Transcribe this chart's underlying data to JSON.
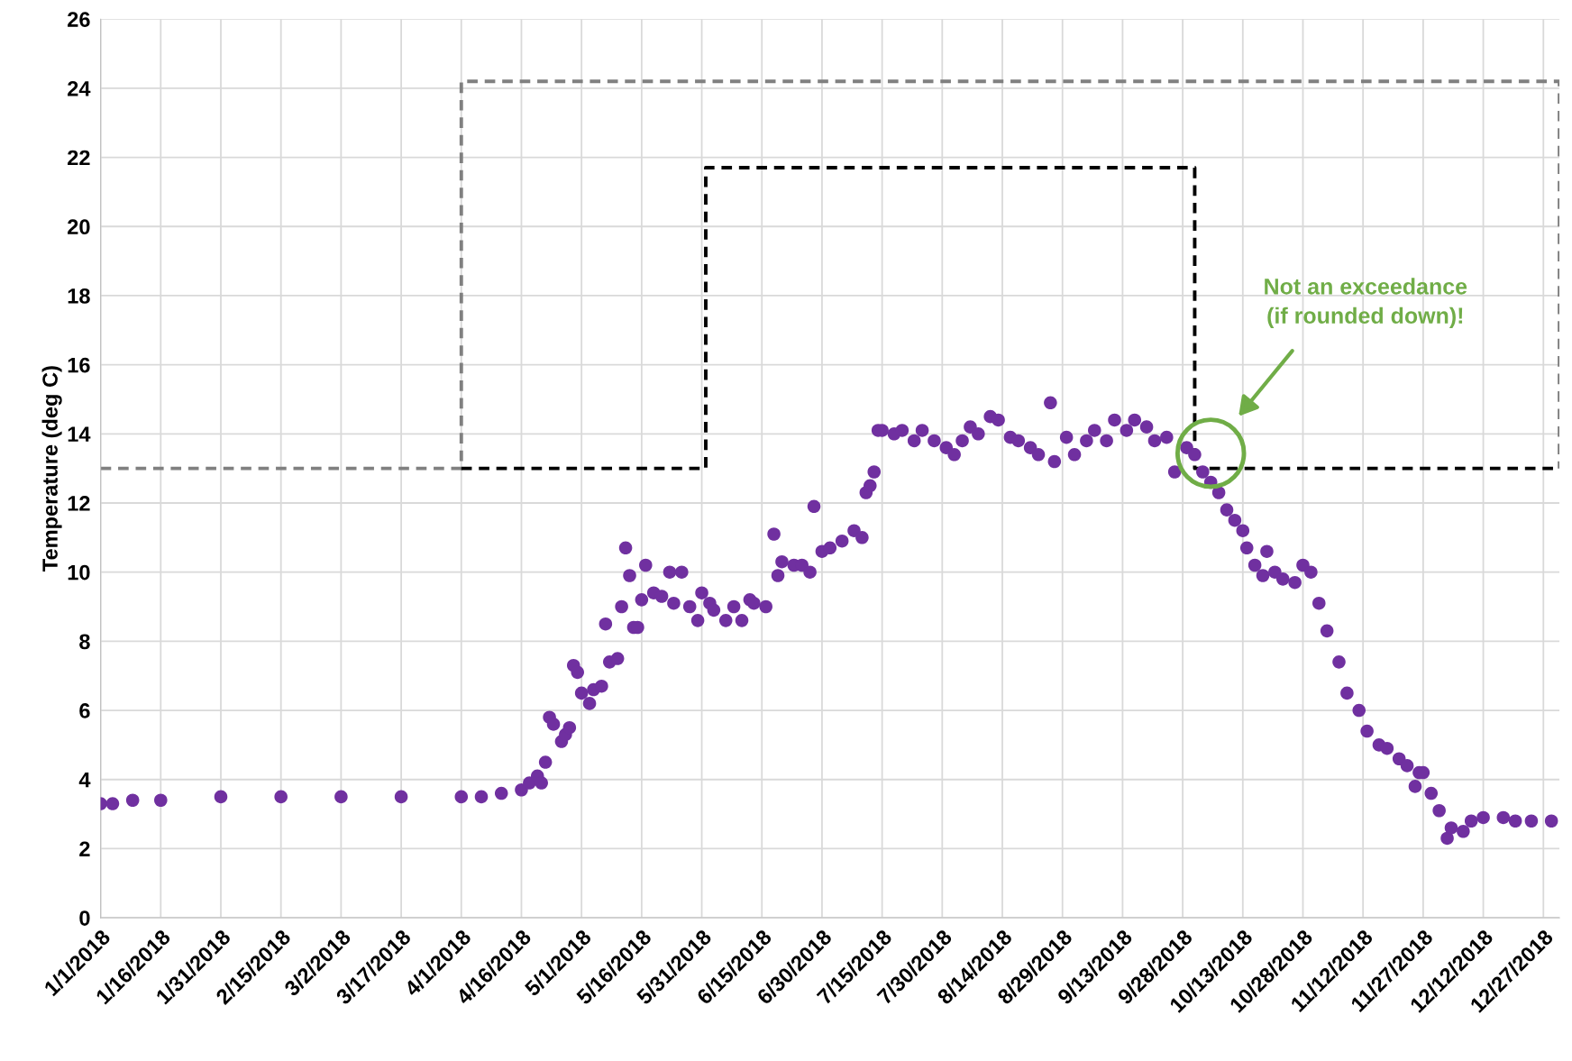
{
  "chart_data": {
    "type": "scatter",
    "ylabel": "Temperature (deg C)",
    "xlim": [
      "2018-01-01",
      "2018-12-31"
    ],
    "xticks": [
      {
        "value": "2018-01-01",
        "label": "1/1/2018"
      },
      {
        "value": "2018-01-16",
        "label": "1/16/2018"
      },
      {
        "value": "2018-01-31",
        "label": "1/31/2018"
      },
      {
        "value": "2018-02-15",
        "label": "2/15/2018"
      },
      {
        "value": "2018-03-02",
        "label": "3/2/2018"
      },
      {
        "value": "2018-03-17",
        "label": "3/17/2018"
      },
      {
        "value": "2018-04-01",
        "label": "4/1/2018"
      },
      {
        "value": "2018-04-16",
        "label": "4/16/2018"
      },
      {
        "value": "2018-05-01",
        "label": "5/1/2018"
      },
      {
        "value": "2018-05-16",
        "label": "5/16/2018"
      },
      {
        "value": "2018-05-31",
        "label": "5/31/2018"
      },
      {
        "value": "2018-06-15",
        "label": "6/15/2018"
      },
      {
        "value": "2018-06-30",
        "label": "6/30/2018"
      },
      {
        "value": "2018-07-15",
        "label": "7/15/2018"
      },
      {
        "value": "2018-07-30",
        "label": "7/30/2018"
      },
      {
        "value": "2018-08-14",
        "label": "8/14/2018"
      },
      {
        "value": "2018-08-29",
        "label": "8/29/2018"
      },
      {
        "value": "2018-09-13",
        "label": "9/13/2018"
      },
      {
        "value": "2018-09-28",
        "label": "9/28/2018"
      },
      {
        "value": "2018-10-13",
        "label": "10/13/2018"
      },
      {
        "value": "2018-10-28",
        "label": "10/28/2018"
      },
      {
        "value": "2018-11-12",
        "label": "11/12/2018"
      },
      {
        "value": "2018-11-27",
        "label": "11/27/2018"
      },
      {
        "value": "2018-12-12",
        "label": "12/12/2018"
      },
      {
        "value": "2018-12-27",
        "label": "12/27/2018"
      }
    ],
    "ylim": [
      0,
      26
    ],
    "yticks": [
      0,
      2,
      4,
      6,
      8,
      10,
      12,
      14,
      16,
      18,
      20,
      22,
      24,
      26
    ],
    "grid": true,
    "series": [
      {
        "type": "line",
        "color": "#808080",
        "line_style": "dashed",
        "marker": "none",
        "x": [
          "2018-01-01",
          "2018-04-01",
          "2018-04-01",
          "2018-12-31",
          "2018-12-31"
        ],
        "values": [
          13,
          13,
          24.2,
          24.2,
          13
        ]
      },
      {
        "type": "line",
        "color": "#000000",
        "line_style": "dashed",
        "marker": "none",
        "x": [
          "2018-04-01",
          "2018-06-01",
          "2018-06-01",
          "2018-10-01",
          "2018-10-01",
          "2018-12-31"
        ],
        "values": [
          13,
          13,
          21.7,
          21.7,
          13,
          13
        ]
      },
      {
        "color": "#7030a0",
        "marker": "circle",
        "x": [
          "2018-01-01",
          "2018-01-04",
          "2018-01-09",
          "2018-01-16",
          "2018-01-31",
          "2018-02-15",
          "2018-03-02",
          "2018-03-17",
          "2018-04-01",
          "2018-04-06",
          "2018-04-11",
          "2018-04-16",
          "2018-04-18",
          "2018-04-20",
          "2018-04-21",
          "2018-04-22",
          "2018-04-23",
          "2018-04-24",
          "2018-04-26",
          "2018-04-27",
          "2018-04-28",
          "2018-04-29",
          "2018-04-30",
          "2018-05-01",
          "2018-05-03",
          "2018-05-04",
          "2018-05-06",
          "2018-05-07",
          "2018-05-08",
          "2018-05-10",
          "2018-05-11",
          "2018-05-12",
          "2018-05-13",
          "2018-05-14",
          "2018-05-15",
          "2018-05-16",
          "2018-05-17",
          "2018-05-19",
          "2018-05-21",
          "2018-05-23",
          "2018-05-24",
          "2018-05-26",
          "2018-05-28",
          "2018-05-30",
          "2018-05-31",
          "2018-06-02",
          "2018-06-03",
          "2018-06-06",
          "2018-06-08",
          "2018-06-10",
          "2018-06-12",
          "2018-06-13",
          "2018-06-16",
          "2018-06-18",
          "2018-06-19",
          "2018-06-20",
          "2018-06-23",
          "2018-06-25",
          "2018-06-27",
          "2018-06-28",
          "2018-06-30",
          "2018-07-02",
          "2018-07-05",
          "2018-07-08",
          "2018-07-10",
          "2018-07-11",
          "2018-07-12",
          "2018-07-13",
          "2018-07-14",
          "2018-07-15",
          "2018-07-18",
          "2018-07-20",
          "2018-07-23",
          "2018-07-25",
          "2018-07-28",
          "2018-07-31",
          "2018-08-02",
          "2018-08-04",
          "2018-08-06",
          "2018-08-08",
          "2018-08-11",
          "2018-08-13",
          "2018-08-16",
          "2018-08-18",
          "2018-08-21",
          "2018-08-23",
          "2018-08-26",
          "2018-08-27",
          "2018-08-30",
          "2018-09-01",
          "2018-09-04",
          "2018-09-06",
          "2018-09-09",
          "2018-09-11",
          "2018-09-14",
          "2018-09-16",
          "2018-09-19",
          "2018-09-21",
          "2018-09-24",
          "2018-09-26",
          "2018-09-29",
          "2018-10-01",
          "2018-10-03",
          "2018-10-05",
          "2018-10-07",
          "2018-10-09",
          "2018-10-11",
          "2018-10-13",
          "2018-10-14",
          "2018-10-16",
          "2018-10-18",
          "2018-10-19",
          "2018-10-21",
          "2018-10-23",
          "2018-10-26",
          "2018-10-28",
          "2018-10-30",
          "2018-11-01",
          "2018-11-03",
          "2018-11-06",
          "2018-11-08",
          "2018-11-11",
          "2018-11-13",
          "2018-11-16",
          "2018-11-18",
          "2018-11-21",
          "2018-11-23",
          "2018-11-25",
          "2018-11-26",
          "2018-11-27",
          "2018-11-29",
          "2018-12-01",
          "2018-12-03",
          "2018-12-04",
          "2018-12-07",
          "2018-12-09",
          "2018-12-12",
          "2018-12-17",
          "2018-12-20",
          "2018-12-24",
          "2018-12-29"
        ],
        "values": [
          3.3,
          3.3,
          3.4,
          3.4,
          3.5,
          3.5,
          3.5,
          3.5,
          3.5,
          3.5,
          3.6,
          3.7,
          3.9,
          4.1,
          3.9,
          4.5,
          5.8,
          5.6,
          5.1,
          5.3,
          5.5,
          7.3,
          7.1,
          6.5,
          6.2,
          6.6,
          6.7,
          8.5,
          7.4,
          7.5,
          9.0,
          10.7,
          9.9,
          8.4,
          8.4,
          9.2,
          10.2,
          9.4,
          9.3,
          10.0,
          9.1,
          10.0,
          9.0,
          8.6,
          9.4,
          9.1,
          8.9,
          8.6,
          9.0,
          8.6,
          9.2,
          9.1,
          9.0,
          11.1,
          9.9,
          10.3,
          10.2,
          10.2,
          10.0,
          11.9,
          10.6,
          10.7,
          10.9,
          11.2,
          11.0,
          12.3,
          12.5,
          12.9,
          14.1,
          14.1,
          14.0,
          14.1,
          13.8,
          14.1,
          13.8,
          13.6,
          13.4,
          13.8,
          14.2,
          14.0,
          14.5,
          14.4,
          13.9,
          13.8,
          13.6,
          13.4,
          14.9,
          13.2,
          13.9,
          13.4,
          13.8,
          14.1,
          13.8,
          14.4,
          14.1,
          14.4,
          14.2,
          13.8,
          13.9,
          12.9,
          13.6,
          13.4,
          12.9,
          12.6,
          12.3,
          11.8,
          11.5,
          11.2,
          10.7,
          10.2,
          9.9,
          10.6,
          10.0,
          9.8,
          9.7,
          10.2,
          10.0,
          9.1,
          8.3,
          7.4,
          6.5,
          6.0,
          5.4,
          5.0,
          4.9,
          4.6,
          4.4,
          3.8,
          4.2,
          4.2,
          3.6,
          3.1,
          2.3,
          2.6,
          2.5,
          2.8,
          2.9,
          2.9,
          2.8,
          2.8,
          2.8
        ]
      }
    ],
    "annotations": [
      "Not an exceedance\n(if rounded down)!"
    ]
  }
}
